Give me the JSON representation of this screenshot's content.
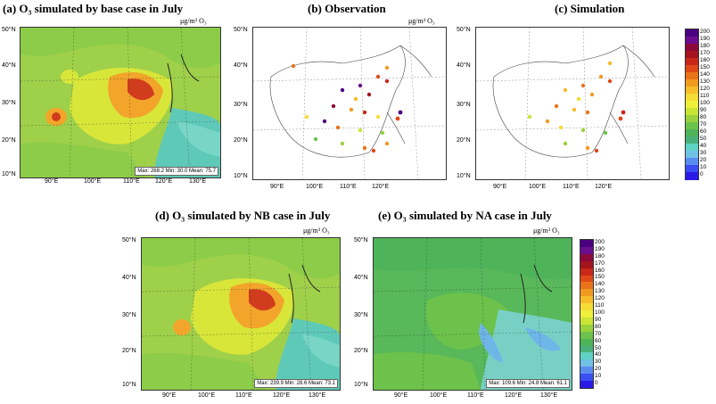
{
  "colorbar_levels": [
    "200",
    "190",
    "180",
    "170",
    "160",
    "150",
    "140",
    "130",
    "120",
    "110",
    "100",
    "90",
    "80",
    "70",
    "60",
    "50",
    "40",
    "30",
    "20",
    "10",
    "0"
  ],
  "colorbar_colors": [
    "#4b0082",
    "#6a0d8f",
    "#8b0a3a",
    "#a4141e",
    "#c8281a",
    "#dd4a18",
    "#e9731a",
    "#f19a20",
    "#f6bd2a",
    "#f5dc36",
    "#eef03a",
    "#c9e536",
    "#98d23c",
    "#6cc24a",
    "#4fb35a",
    "#49b07a",
    "#5fd2c3",
    "#6fc1e6",
    "#5a8cf0",
    "#3a4ff2",
    "#2b1ae6"
  ],
  "map_colors": {
    "ocean_far": "#5fc9b8",
    "ocean_near": "#79d6c6",
    "land_low": "#9fd04a",
    "land_mid": "#d8e63a",
    "land_high": "#f2a52a",
    "land_peak": "#d23c1e",
    "na_land": "#58b85a",
    "na_ocean": "#78d0c4",
    "na_blue": "#6fb6e8"
  },
  "panels": {
    "a": {
      "title": "(a) O₃ simulated by base case in July",
      "unit": "μg/m³  O₃",
      "stats": "Max: 268.2   Min: 30.0   Mean: 75.7"
    },
    "b": {
      "title": "(b) Observation",
      "unit": "μg/m³  O₃"
    },
    "c": {
      "title": "(c) Simulation"
    },
    "d": {
      "title": "(d) O₃ simulated by NB case in July",
      "unit": "μg/m³  O₃",
      "stats": "Max: 239.9   Min: 28.6   Mean: 73.1"
    },
    "e": {
      "title": "(e) O₃ simulated by NA case in July",
      "unit": "μg/m³  O₃",
      "stats": "Max: 109.6   Min: 24.8   Mean: 61.1"
    }
  },
  "axes": {
    "lat_labels": [
      "50°N",
      "40°N",
      "30°N",
      "20°N",
      "10°N"
    ],
    "lon_labels": [
      "90°E",
      "100°E",
      "110°E",
      "120°E",
      "130°E"
    ]
  }
}
